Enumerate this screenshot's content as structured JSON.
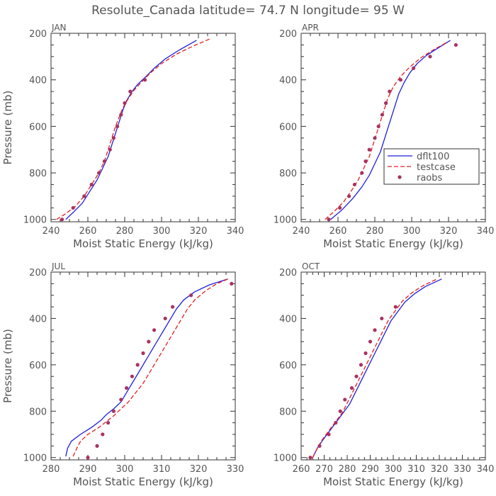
{
  "title": "Resolute_Canada  latitude= 74.7 N longitude= 95 W",
  "colors": {
    "dflt100": "#1f1fdc",
    "testcase": "#e02020",
    "raobs": "#a83262",
    "text": "#555555"
  },
  "legend": {
    "entries": [
      "dflt100",
      "testcase",
      "raobs"
    ],
    "placement": "middle-right of APR panel"
  },
  "chart_data": [
    {
      "type": "line",
      "panel": "JAN",
      "title": "JAN",
      "xlabel": "Moist Static Energy (kJ/kg)",
      "ylabel": "Pressure (mb)",
      "xlim": [
        240,
        340
      ],
      "ylim": [
        1010,
        200
      ],
      "xticks": [
        240,
        260,
        280,
        300,
        320,
        340
      ],
      "yticks": [
        200,
        400,
        600,
        800,
        1000
      ],
      "series": [
        {
          "name": "dflt100",
          "style": "solid",
          "points": [
            [
              248,
              1000
            ],
            [
              252,
              970
            ],
            [
              257,
              930
            ],
            [
              261,
              880
            ],
            [
              265,
              830
            ],
            [
              268,
              780
            ],
            [
              271,
              730
            ],
            [
              273,
              680
            ],
            [
              275,
              630
            ],
            [
              277,
              580
            ],
            [
              279,
              530
            ],
            [
              281,
              490
            ],
            [
              284,
              450
            ],
            [
              287,
              420
            ],
            [
              291,
              390
            ],
            [
              296,
              350
            ],
            [
              302,
              310
            ],
            [
              310,
              270
            ],
            [
              319,
              230
            ]
          ]
        },
        {
          "name": "testcase",
          "style": "dashed",
          "points": [
            [
              243,
              1000
            ],
            [
              248,
              975
            ],
            [
              253,
              945
            ],
            [
              258,
              900
            ],
            [
              262,
              850
            ],
            [
              266,
              800
            ],
            [
              269,
              750
            ],
            [
              271,
              700
            ],
            [
              273,
              650
            ],
            [
              275,
              600
            ],
            [
              277,
              560
            ],
            [
              279,
              520
            ],
            [
              282,
              480
            ],
            [
              285,
              445
            ],
            [
              289,
              410
            ],
            [
              294,
              370
            ],
            [
              300,
              330
            ],
            [
              308,
              290
            ],
            [
              317,
              255
            ],
            [
              326,
              225
            ]
          ]
        },
        {
          "name": "raobs",
          "style": "markers",
          "points": [
            [
              246,
              1000
            ],
            [
              252,
              950
            ],
            [
              258,
              900
            ],
            [
              262,
              850
            ],
            [
              266,
              800
            ],
            [
              269,
              750
            ],
            [
              272,
              700
            ],
            [
              274,
              650
            ],
            [
              276,
              600
            ],
            [
              278,
              550
            ],
            [
              280,
              500
            ],
            [
              283,
              450
            ],
            [
              291,
              400
            ]
          ]
        }
      ]
    },
    {
      "type": "line",
      "panel": "APR",
      "title": "APR",
      "xlabel": "Moist Static Energy (kJ/kg)",
      "ylabel": "",
      "xlim": [
        240,
        340
      ],
      "ylim": [
        1010,
        200
      ],
      "xticks": [
        240,
        260,
        280,
        300,
        320,
        340
      ],
      "yticks": [
        200,
        400,
        600,
        800,
        1000
      ],
      "series": [
        {
          "name": "dflt100",
          "style": "solid",
          "points": [
            [
              256,
              1000
            ],
            [
              262,
              960
            ],
            [
              268,
              910
            ],
            [
              273,
              860
            ],
            [
              277,
              810
            ],
            [
              280,
              760
            ],
            [
              283,
              710
            ],
            [
              285,
              660
            ],
            [
              287,
              610
            ],
            [
              289,
              560
            ],
            [
              291,
              510
            ],
            [
              293,
              460
            ],
            [
              296,
              410
            ],
            [
              299,
              370
            ],
            [
              303,
              330
            ],
            [
              308,
              295
            ],
            [
              314,
              265
            ],
            [
              321,
              230
            ]
          ]
        },
        {
          "name": "testcase",
          "style": "dashed",
          "points": [
            [
              253,
              1000
            ],
            [
              258,
              965
            ],
            [
              263,
              925
            ],
            [
              267,
              880
            ],
            [
              271,
              830
            ],
            [
              274,
              780
            ],
            [
              277,
              730
            ],
            [
              279,
              680
            ],
            [
              281,
              630
            ],
            [
              283,
              580
            ],
            [
              285,
              530
            ],
            [
              287,
              480
            ],
            [
              290,
              430
            ],
            [
              294,
              385
            ],
            [
              299,
              345
            ],
            [
              305,
              305
            ],
            [
              312,
              270
            ],
            [
              320,
              235
            ]
          ]
        },
        {
          "name": "raobs",
          "style": "markers",
          "points": [
            [
              255,
              1000
            ],
            [
              261,
              950
            ],
            [
              266,
              900
            ],
            [
              269,
              850
            ],
            [
              273,
              800
            ],
            [
              275,
              750
            ],
            [
              277,
              700
            ],
            [
              280,
              650
            ],
            [
              282,
              600
            ],
            [
              284,
              550
            ],
            [
              286,
              500
            ],
            [
              288,
              450
            ],
            [
              294,
              400
            ],
            [
              301,
              350
            ],
            [
              310,
              300
            ],
            [
              324,
              250
            ]
          ]
        }
      ]
    },
    {
      "type": "line",
      "panel": "JUL",
      "title": "JUL",
      "xlabel": "Moist Static Energy (kJ/kg)",
      "ylabel": "Pressure (mb)",
      "xlim": [
        280,
        330
      ],
      "ylim": [
        1010,
        200
      ],
      "xticks": [
        280,
        290,
        300,
        310,
        320,
        330
      ],
      "yticks": [
        200,
        400,
        600,
        800,
        1000
      ],
      "series": [
        {
          "name": "dflt100",
          "style": "solid",
          "points": [
            [
              284,
              995
            ],
            [
              284.5,
              960
            ],
            [
              285.5,
              930
            ],
            [
              288,
              900
            ],
            [
              291,
              870
            ],
            [
              293.5,
              840
            ],
            [
              295,
              815
            ],
            [
              297,
              790
            ],
            [
              299,
              760
            ],
            [
              300.5,
              720
            ],
            [
              302,
              680
            ],
            [
              303.5,
              640
            ],
            [
              305,
              600
            ],
            [
              306.5,
              560
            ],
            [
              308,
              520
            ],
            [
              309.5,
              480
            ],
            [
              311,
              440
            ],
            [
              312.5,
              400
            ],
            [
              314,
              360
            ],
            [
              316,
              320
            ],
            [
              319,
              285
            ],
            [
              323,
              255
            ],
            [
              328,
              230
            ]
          ]
        },
        {
          "name": "testcase",
          "style": "dashed",
          "points": [
            [
              286,
              995
            ],
            [
              287,
              960
            ],
            [
              288,
              930
            ],
            [
              290,
              900
            ],
            [
              293,
              870
            ],
            [
              295,
              845
            ],
            [
              297,
              820
            ],
            [
              299,
              790
            ],
            [
              301,
              760
            ],
            [
              303,
              720
            ],
            [
              305,
              680
            ],
            [
              306.5,
              640
            ],
            [
              308,
              600
            ],
            [
              309.5,
              560
            ],
            [
              311,
              520
            ],
            [
              312.5,
              480
            ],
            [
              314,
              440
            ],
            [
              315.5,
              400
            ],
            [
              317,
              360
            ],
            [
              319,
              320
            ],
            [
              322,
              280
            ],
            [
              325,
              250
            ],
            [
              328,
              230
            ]
          ]
        },
        {
          "name": "raobs",
          "style": "markers",
          "points": [
            [
              290,
              1000
            ],
            [
              292.5,
              950
            ],
            [
              294,
              900
            ],
            [
              295.5,
              850
            ],
            [
              297,
              800
            ],
            [
              299,
              750
            ],
            [
              300.5,
              700
            ],
            [
              302,
              650
            ],
            [
              303.5,
              600
            ],
            [
              305,
              550
            ],
            [
              306.5,
              500
            ],
            [
              308,
              450
            ],
            [
              311,
              400
            ],
            [
              313,
              350
            ],
            [
              318,
              300
            ],
            [
              329,
              250
            ]
          ]
        }
      ]
    },
    {
      "type": "line",
      "panel": "OCT",
      "title": "OCT",
      "xlabel": "Moist Static Energy (kJ/kg)",
      "ylabel": "",
      "xlim": [
        260,
        340
      ],
      "ylim": [
        1010,
        200
      ],
      "xticks": [
        260,
        270,
        280,
        290,
        300,
        310,
        320,
        330,
        340
      ],
      "yticks": [
        200,
        400,
        600,
        800,
        1000
      ],
      "series": [
        {
          "name": "dflt100",
          "style": "solid",
          "points": [
            [
              265,
              1000
            ],
            [
              267,
              960
            ],
            [
              269,
              930
            ],
            [
              272,
              890
            ],
            [
              275,
              850
            ],
            [
              278,
              810
            ],
            [
              281,
              770
            ],
            [
              283,
              730
            ],
            [
              285,
              690
            ],
            [
              287,
              650
            ],
            [
              289,
              610
            ],
            [
              291,
              570
            ],
            [
              293,
              530
            ],
            [
              295,
              490
            ],
            [
              297,
              450
            ],
            [
              299,
              410
            ],
            [
              302,
              370
            ],
            [
              305,
              330
            ],
            [
              309,
              295
            ],
            [
              314,
              262
            ],
            [
              321,
              230
            ]
          ]
        },
        {
          "name": "testcase",
          "style": "dashed",
          "points": [
            [
              265,
              1000
            ],
            [
              267,
              960
            ],
            [
              269,
              925
            ],
            [
              272,
              885
            ],
            [
              275,
              845
            ],
            [
              278,
              805
            ],
            [
              280,
              765
            ],
            [
              282,
              725
            ],
            [
              284,
              685
            ],
            [
              286,
              645
            ],
            [
              288,
              605
            ],
            [
              290,
              565
            ],
            [
              292,
              525
            ],
            [
              294,
              485
            ],
            [
              296,
              445
            ],
            [
              298,
              405
            ],
            [
              301,
              365
            ],
            [
              304,
              325
            ],
            [
              308,
              290
            ],
            [
              313,
              258
            ],
            [
              319,
              230
            ]
          ]
        },
        {
          "name": "raobs",
          "style": "markers",
          "points": [
            [
              264,
              1000
            ],
            [
              268,
              950
            ],
            [
              272,
              900
            ],
            [
              275,
              850
            ],
            [
              277,
              800
            ],
            [
              279,
              750
            ],
            [
              282,
              700
            ],
            [
              284,
              650
            ],
            [
              286,
              600
            ],
            [
              288,
              550
            ],
            [
              290,
              500
            ],
            [
              292,
              450
            ],
            [
              295,
              400
            ],
            [
              301,
              350
            ]
          ]
        }
      ]
    }
  ]
}
